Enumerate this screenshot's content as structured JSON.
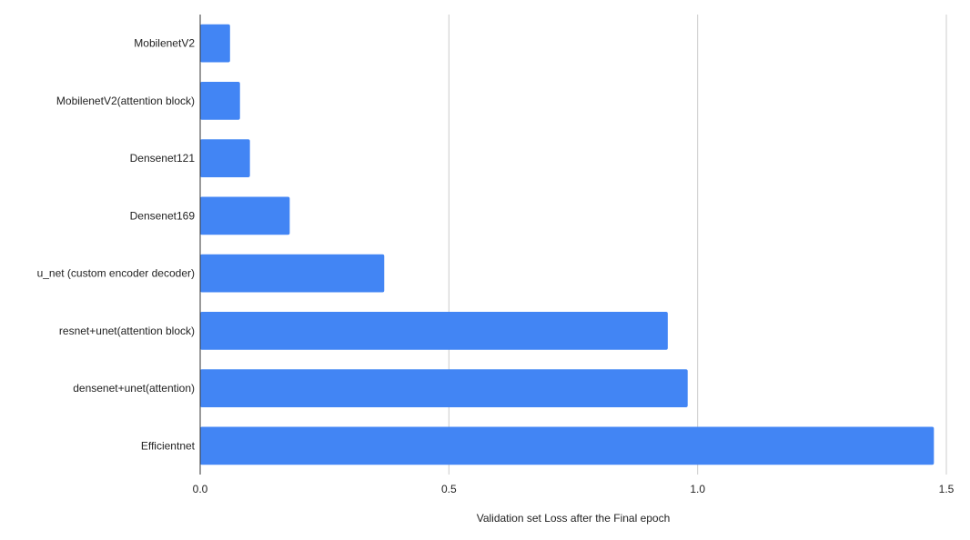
{
  "chart_data": {
    "type": "bar",
    "orientation": "horizontal",
    "categories": [
      "MobilenetV2",
      "MobilenetV2(attention block)",
      "Densenet121",
      "Densenet169",
      "u_net (custom encoder decoder)",
      "resnet+unet(attention block)",
      "densenet+unet(attention)",
      "Efficientnet"
    ],
    "values": [
      0.06,
      0.08,
      0.1,
      0.18,
      0.37,
      0.94,
      0.98,
      1.475
    ],
    "xlabel": "Validation set Loss after the Final epoch",
    "ylabel": "",
    "xlim": [
      0,
      1.5
    ],
    "xticks": [
      0,
      0.5,
      1,
      1.5
    ],
    "xtick_labels": [
      "0.0",
      "0.5",
      "1.0",
      "1.5"
    ],
    "grid": true,
    "bar_color": "#4285f4",
    "grid_color": "#cccccc",
    "axis_color": "#333333"
  }
}
